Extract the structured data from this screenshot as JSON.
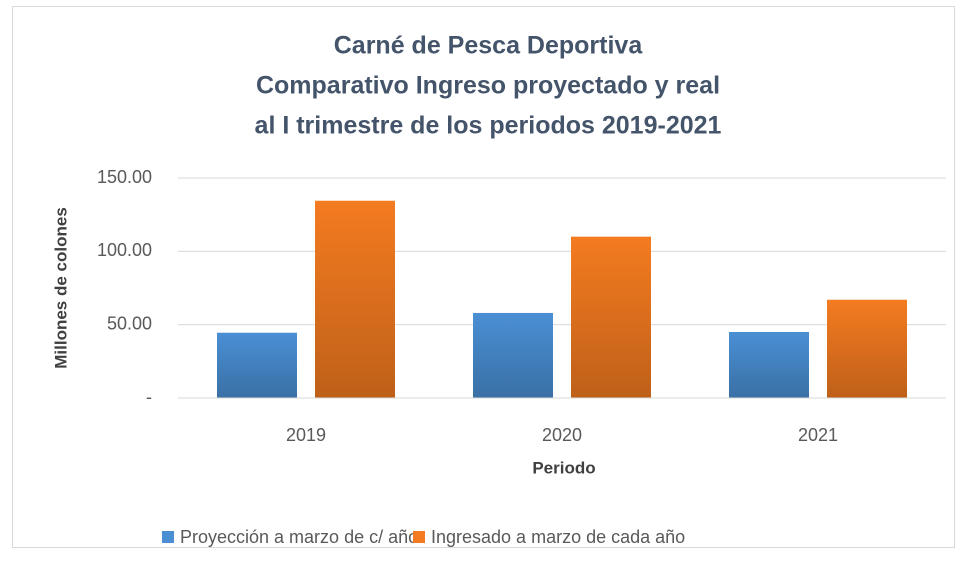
{
  "chart_data": {
    "type": "bar",
    "title": [
      "Carné de Pesca Deportiva",
      "Comparativo Ingreso proyectado y real",
      "al I trimestre de los periodos 2019-2021"
    ],
    "x_label": "Periodo",
    "y_label": "Millones de colones",
    "categories": [
      "2019",
      "2020",
      "2021"
    ],
    "series": [
      {
        "name": "Proyección a marzo de c/ año",
        "color": "#4a8fd4",
        "values": [
          44.5,
          58,
          45
        ]
      },
      {
        "name": "Ingresado a marzo de cada año",
        "color": "#f47b20",
        "values": [
          134.5,
          110,
          67
        ]
      }
    ],
    "ylim": [
      0,
      150
    ],
    "yticks": [
      {
        "value": 0,
        "label": "-"
      },
      {
        "value": 50,
        "label": "50.00"
      },
      {
        "value": 100,
        "label": "100.00"
      },
      {
        "value": 150,
        "label": "150.00"
      }
    ],
    "grid": true,
    "legend": "bottom"
  }
}
